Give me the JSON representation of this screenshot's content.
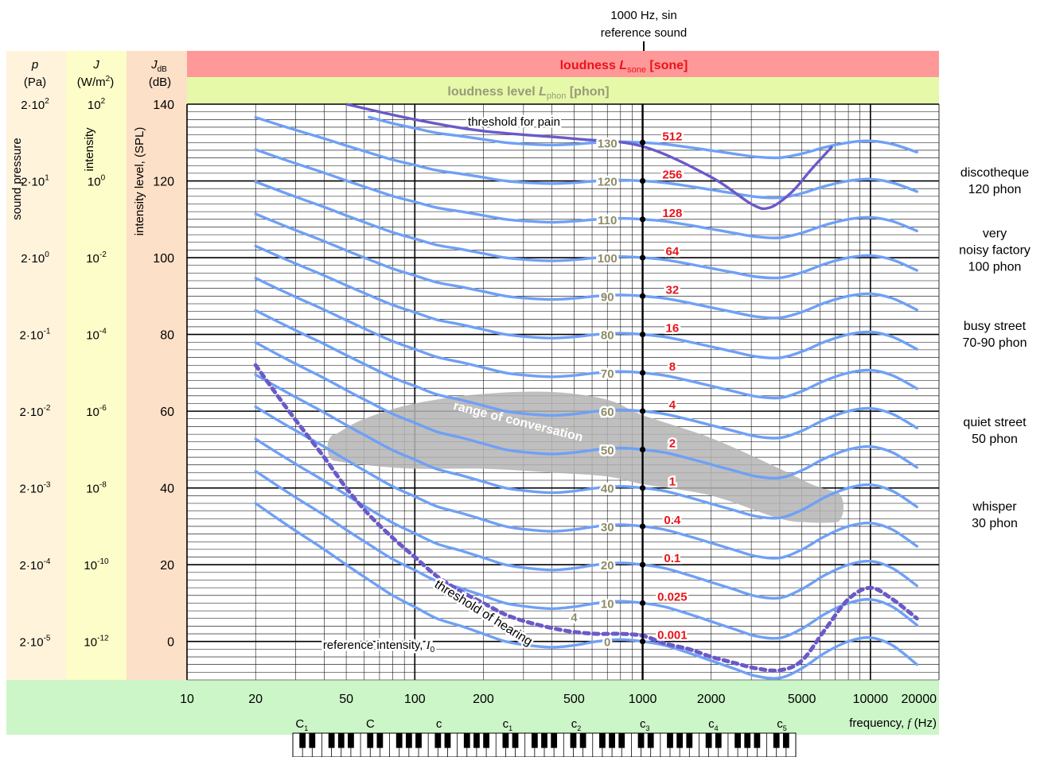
{
  "reference_label": [
    "1000 Hz, sin",
    "reference sound"
  ],
  "bands": {
    "sone": {
      "prefix": "loudness ",
      "sym": "L",
      "sub": "sone",
      "unit": " [sone]",
      "color": "#ff9999",
      "text_color": "#e8141a"
    },
    "phon": {
      "prefix": "loudness level ",
      "sym": "L",
      "sub": "phon",
      "unit": "  [phon]",
      "color": "#e6f9a8",
      "text_color": "#9a9a7a"
    },
    "freq": {
      "color": "#ccf5c8"
    }
  },
  "columns": {
    "pressure": {
      "sym": "p",
      "unit": "(Pa)",
      "label": "sound pressure",
      "color": "#fff3dc"
    },
    "intensity": {
      "sym": "J",
      "unit_base": "(W/m",
      "unit_exp": "2",
      "unit_close": ")",
      "label": "intensity",
      "color": "#fcfdc8"
    },
    "level": {
      "sym": "J",
      "sub": "dB",
      "unit": "(dB)",
      "label": "intensity level, (SPL)",
      "color": "#fde0c8"
    }
  },
  "left_ticks": [
    {
      "db": 140,
      "p": "2·10",
      "p_exp": "2",
      "j": "10",
      "j_exp": "2"
    },
    {
      "db": 120,
      "p": "2·10",
      "p_exp": "1",
      "j": "10",
      "j_exp": "0"
    },
    {
      "db": 100,
      "p": "2·10",
      "p_exp": "0",
      "j": "10",
      "j_exp": "-2"
    },
    {
      "db": 80,
      "p": "2·10",
      "p_exp": "-1",
      "j": "10",
      "j_exp": "-4"
    },
    {
      "db": 60,
      "p": "2·10",
      "p_exp": "-2",
      "j": "10",
      "j_exp": "-6"
    },
    {
      "db": 40,
      "p": "2·10",
      "p_exp": "-3",
      "j": "10",
      "j_exp": "-8"
    },
    {
      "db": 20,
      "p": "2·10",
      "p_exp": "-4",
      "j": "10",
      "j_exp": "-10"
    },
    {
      "db": 0,
      "p": "2·10",
      "p_exp": "-5",
      "j": "10",
      "j_exp": "-12"
    }
  ],
  "right_labels": [
    {
      "lines": [
        "discotheque",
        "120 phon"
      ],
      "db": 120
    },
    {
      "lines": [
        "very",
        "noisy factory",
        "100 phon"
      ],
      "db": 102
    },
    {
      "lines": [
        "busy street",
        "70-90 phon"
      ],
      "db": 80
    },
    {
      "lines": [
        "quiet street",
        "50 phon"
      ],
      "db": 55
    },
    {
      "lines": [
        "whisper",
        "30 phon"
      ],
      "db": 33
    }
  ],
  "annotations": {
    "pain": "threshold for pain",
    "conversation": "range of conversation",
    "hearing": "threshold of hearing",
    "reference": "reference intensity, ",
    "reference_sym": "I",
    "reference_sub": "0"
  },
  "xlabel": {
    "text": "frequency, ",
    "sym": "f",
    "unit": " (Hz)"
  },
  "piano_notes": [
    {
      "name": "C",
      "sub": "1",
      "f": 32.7
    },
    {
      "name": "C",
      "sub": "",
      "f": 65.4
    },
    {
      "name": "c",
      "sub": "",
      "f": 130.8
    },
    {
      "name": "c",
      "sub": "1",
      "f": 261.6
    },
    {
      "name": "c",
      "sub": "2",
      "f": 523.3
    },
    {
      "name": "c",
      "sub": "3",
      "f": 1046.5
    },
    {
      "name": "c",
      "sub": "4",
      "f": 2093
    },
    {
      "name": "c",
      "sub": "5",
      "f": 4186
    }
  ],
  "chart_data": {
    "type": "line",
    "x_scale": "log",
    "xlim": [
      10,
      20000
    ],
    "ylim": [
      -10,
      140
    ],
    "x_ticks": [
      10,
      20,
      50,
      100,
      200,
      500,
      1000,
      2000,
      5000,
      10000,
      20000
    ],
    "x_tick_labels": [
      "10",
      "20",
      "50",
      "100",
      "200",
      "500",
      "1000",
      "2000",
      "5000",
      "10000",
      "20000"
    ],
    "y_ticks": [
      0,
      20,
      40,
      60,
      80,
      100,
      120,
      140
    ],
    "y_tick_labels": [
      "0",
      "20",
      "40",
      "60",
      "80",
      "100",
      "120",
      "140"
    ],
    "grid": true,
    "curve_color": "#6fa0f5",
    "threshold_color": "#6a5ac8",
    "region_color": "#b4b4b4",
    "sone_color": "#e8141a",
    "phon_color": "#8c8c66",
    "reference_frequency": 1000,
    "phon_label_x": 700,
    "sone_label_x": 1350,
    "shape_offsets": {
      "x": [
        20,
        25,
        31.5,
        40,
        50,
        63,
        80,
        100,
        125,
        160,
        200,
        250,
        315,
        400,
        500,
        630,
        800,
        1000,
        1250,
        1600,
        2000,
        2500,
        3150,
        4000,
        5000,
        6300,
        8000,
        10000,
        12500,
        16000
      ],
      "offsets": [
        36,
        32,
        28,
        24,
        20,
        16,
        12,
        9,
        6,
        4,
        2,
        0,
        -1,
        -1.5,
        -1,
        0,
        0.5,
        0,
        -1,
        -3,
        -5,
        -7,
        -9,
        -9.5,
        -7,
        -3,
        0,
        1,
        -1,
        -6
      ]
    },
    "series": [
      {
        "phon": 0,
        "sone": "0.001"
      },
      {
        "phon": 10,
        "sone": "0.025"
      },
      {
        "phon": 20,
        "sone": "0.1"
      },
      {
        "phon": 30,
        "sone": "0.4"
      },
      {
        "phon": 40,
        "sone": "1"
      },
      {
        "phon": 50,
        "sone": "2"
      },
      {
        "phon": 60,
        "sone": "4"
      },
      {
        "phon": 70,
        "sone": "8"
      },
      {
        "phon": 80,
        "sone": "16"
      },
      {
        "phon": 90,
        "sone": "32"
      },
      {
        "phon": 100,
        "sone": "64"
      },
      {
        "phon": 110,
        "sone": "128"
      },
      {
        "phon": 120,
        "sone": "256"
      },
      {
        "phon": 130,
        "sone": "512"
      }
    ],
    "extra_phon_label": {
      "phon": 4,
      "x": 500,
      "y": 6.5
    },
    "threshold_of_hearing": {
      "x": [
        20,
        25,
        31.5,
        40,
        50,
        63,
        80,
        100,
        125,
        160,
        200,
        250,
        315,
        400,
        500,
        630,
        800,
        1000,
        1250,
        1600,
        2000,
        2500,
        3150,
        4000,
        5000,
        6300,
        8000,
        10000,
        12500,
        16000
      ],
      "y": [
        72,
        64,
        56,
        48,
        40,
        33,
        27,
        22,
        17,
        13,
        10,
        7,
        5,
        3.5,
        2.5,
        2,
        2,
        1.5,
        -0.5,
        -2,
        -4,
        -5.5,
        -7,
        -7.5,
        -5,
        3,
        11,
        14,
        11,
        6
      ]
    },
    "threshold_of_pain": {
      "x": [
        50,
        100,
        200,
        500,
        1000,
        2000,
        3000,
        3600,
        4500,
        5500,
        6800
      ],
      "y": [
        140,
        136,
        133,
        131,
        129,
        121,
        114,
        113,
        117,
        123,
        129
      ]
    },
    "conversation_region": {
      "upper": {
        "x": [
          45,
          60,
          100,
          200,
          400,
          700,
          1000,
          2000,
          4000,
          5500,
          7000
        ],
        "y": [
          54,
          58,
          62,
          64.5,
          65,
          63,
          59,
          53,
          45,
          41,
          39
        ]
      },
      "lower": {
        "x": [
          45,
          60,
          100,
          200,
          400,
          700,
          1000,
          2000,
          4000,
          5500,
          7000
        ],
        "y": [
          47,
          46,
          45,
          45,
          44,
          43,
          41,
          38,
          32,
          31,
          31
        ]
      }
    }
  }
}
